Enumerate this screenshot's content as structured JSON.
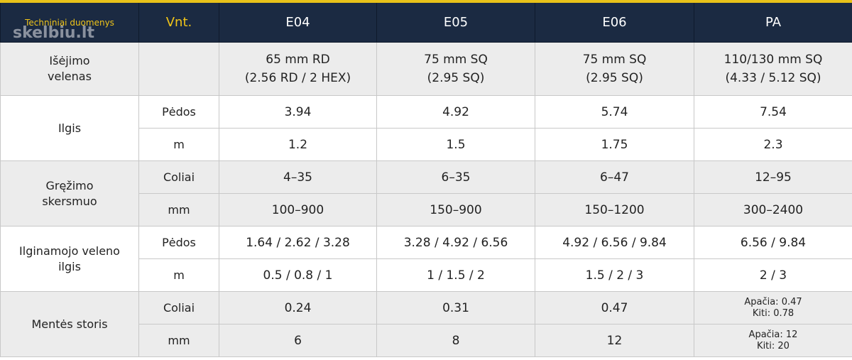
{
  "header": {
    "watermark": "skelbiu.lt",
    "columns": [
      "Techniniai duomenys",
      "Vnt.",
      "E04",
      "E05",
      "E06",
      "PA"
    ]
  },
  "table": {
    "groups": [
      {
        "label": [
          "Išėjimo",
          "velenas"
        ],
        "rows": [
          {
            "cells": [
              [
                "65 mm RD",
                "(2.56 RD / 2 HEX)"
              ],
              [
                "75 mm SQ",
                "(2.95 SQ)"
              ],
              [
                "75 mm SQ",
                "(2.95 SQ)"
              ],
              [
                "110/130 mm SQ",
                "(4.33 / 5.12 SQ)"
              ]
            ]
          }
        ]
      },
      {
        "label": [
          "Ilgis"
        ],
        "rows": [
          {
            "unit": "Pėdos",
            "cells": [
              [
                "3.94"
              ],
              [
                "4.92"
              ],
              [
                "5.74"
              ],
              [
                "7.54"
              ]
            ]
          },
          {
            "unit": "m",
            "cells": [
              [
                "1.2"
              ],
              [
                "1.5"
              ],
              [
                "1.75"
              ],
              [
                "2.3"
              ]
            ]
          }
        ]
      },
      {
        "label": [
          "Gręžimo",
          "skersmuo"
        ],
        "rows": [
          {
            "unit": "Coliai",
            "cells": [
              [
                "4–35"
              ],
              [
                "6–35"
              ],
              [
                "6–47"
              ],
              [
                "12–95"
              ]
            ]
          },
          {
            "unit": "mm",
            "cells": [
              [
                "100–900"
              ],
              [
                "150–900"
              ],
              [
                "150–1200"
              ],
              [
                "300–2400"
              ]
            ]
          }
        ]
      },
      {
        "label": [
          "Ilginamojo veleno",
          "ilgis"
        ],
        "rows": [
          {
            "unit": "Pėdos",
            "cells": [
              [
                "1.64 / 2.62 / 3.28"
              ],
              [
                "3.28 / 4.92 / 6.56"
              ],
              [
                "4.92 / 6.56 / 9.84"
              ],
              [
                "6.56 / 9.84"
              ]
            ]
          },
          {
            "unit": "m",
            "cells": [
              [
                "0.5 / 0.8 / 1"
              ],
              [
                "1 / 1.5 / 2"
              ],
              [
                "1.5 / 2 / 3"
              ],
              [
                "2 / 3"
              ]
            ]
          }
        ]
      },
      {
        "label": [
          "Mentės storis"
        ],
        "rows": [
          {
            "unit": "Coliai",
            "cells": [
              [
                "0.24"
              ],
              [
                "0.31"
              ],
              [
                "0.47"
              ],
              [
                "Apačia: 0.47",
                "Kiti: 0.78"
              ]
            ]
          },
          {
            "unit": "mm",
            "cells": [
              [
                "6"
              ],
              [
                "8"
              ],
              [
                "12"
              ],
              [
                "Apačia: 12",
                "Kiti: 20"
              ]
            ]
          }
        ]
      }
    ]
  }
}
